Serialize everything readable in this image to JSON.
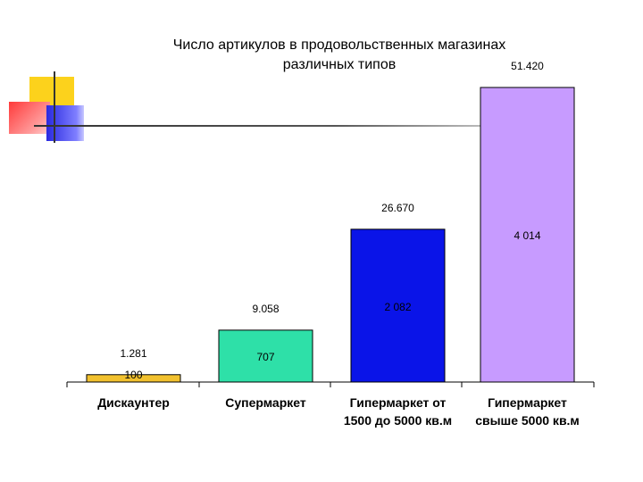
{
  "title_lines": [
    "Число артикулов в продовольственных магазинах",
    "различных типов"
  ],
  "chart_data": {
    "type": "bar",
    "title": "Число артикулов в продовольственных магазинах различных типов",
    "categories": [
      [
        "Дискаунтер"
      ],
      [
        "Супермаркет"
      ],
      [
        "Гипермаркет от",
        "1500 до 5000 кв.м"
      ],
      [
        "Гипермаркет",
        "свыше 5000 кв.м"
      ]
    ],
    "values": [
      1281,
      9058,
      26670,
      51420
    ],
    "value_labels": [
      "1.281",
      "9.058",
      "26.670",
      "51.420"
    ],
    "inner_labels": [
      "100",
      "707",
      "2 082",
      "4 014"
    ],
    "ylim": [
      0,
      52000
    ],
    "colors": [
      "#f2c12e",
      "#2ee0a8",
      "#0a14e8",
      "#c79bff"
    ],
    "xlabel": "",
    "ylabel": "",
    "grid": false
  }
}
